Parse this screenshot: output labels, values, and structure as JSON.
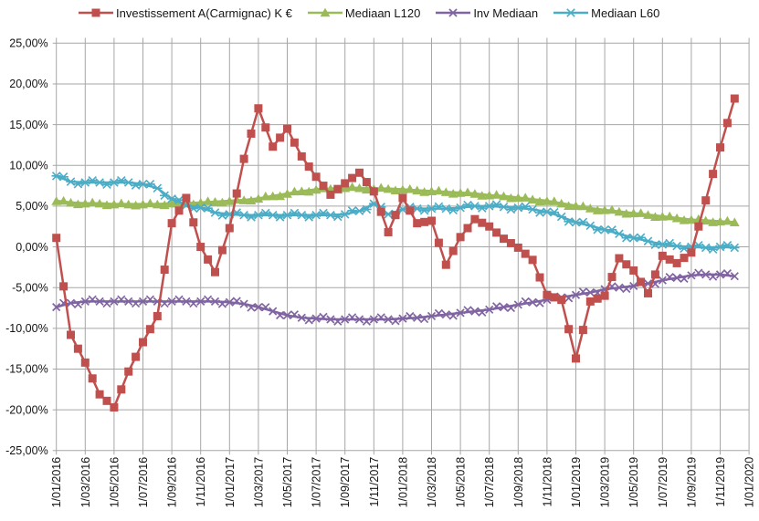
{
  "chart_data": {
    "type": "line",
    "title": "",
    "grid": true,
    "legend_position": "top",
    "ylim": [
      -25,
      25
    ],
    "ytick_step": 5,
    "y_tick_labels": [
      "25,00%",
      "20,00%",
      "15,00%",
      "10,00%",
      "5,00%",
      "0,00%",
      "-5,00%",
      "-10,00%",
      "-15,00%",
      "-20,00%",
      "-25,00%"
    ],
    "x_tick_labels": [
      "1/01/2016",
      "1/03/2016",
      "1/05/2016",
      "1/07/2016",
      "1/09/2016",
      "1/11/2016",
      "1/01/2017",
      "1/03/2017",
      "1/05/2017",
      "1/07/2017",
      "1/09/2017",
      "1/11/2017",
      "1/01/2018",
      "1/03/2018",
      "1/05/2018",
      "1/07/2018",
      "1/09/2018",
      "1/11/2018",
      "1/01/2019",
      "1/03/2019",
      "1/05/2019",
      "1/07/2019",
      "1/09/2019",
      "1/11/2019",
      "1/01/2020"
    ],
    "categories": [
      "1/01/2016",
      "1/02/2016",
      "1/03/2016",
      "1/04/2016",
      "1/05/2016",
      "1/06/2016",
      "1/07/2016",
      "1/08/2016",
      "1/09/2016",
      "1/10/2016",
      "1/11/2016",
      "1/12/2016",
      "1/01/2017",
      "1/02/2017",
      "1/03/2017",
      "1/04/2017",
      "1/05/2017",
      "1/06/2017",
      "1/07/2017",
      "1/08/2017",
      "1/09/2017",
      "1/10/2017",
      "1/11/2017",
      "1/12/2017",
      "1/01/2018",
      "1/02/2018",
      "1/03/2018",
      "1/04/2018",
      "1/05/2018",
      "1/06/2018",
      "1/07/2018",
      "1/08/2018",
      "1/09/2018",
      "1/10/2018",
      "1/11/2018",
      "1/12/2018",
      "1/01/2019",
      "1/02/2019",
      "1/03/2019",
      "1/04/2019",
      "1/05/2019",
      "1/06/2019",
      "1/07/2019",
      "1/08/2019",
      "1/09/2019",
      "1/10/2019",
      "1/11/2019",
      "1/12/2019"
    ],
    "value_unit": "percent",
    "colors": {
      "grid": "#a6a6a6",
      "axis_text": "#141414",
      "background": "#ffffff"
    },
    "series": [
      {
        "key": "investissement-a-carmignac",
        "name": "Investissement A(Carmignac) K €",
        "color": "#C0504D",
        "marker": "square",
        "values": [
          1.1,
          -10.8,
          -14.2,
          -18.1,
          -19.7,
          -15.3,
          -11.7,
          -8.5,
          2.9,
          6.0,
          0.0,
          -3.1,
          2.3,
          10.8,
          17.0,
          12.3,
          14.5,
          11.1,
          8.6,
          6.4,
          7.8,
          9.1,
          6.8,
          1.8,
          6.0,
          2.9,
          3.2,
          -2.2,
          1.2,
          3.4,
          2.5,
          1.0,
          -0.1,
          -1.6,
          -5.9,
          -6.5,
          -13.7,
          -6.7,
          -6.0,
          -1.4,
          -2.9,
          -5.7,
          -1.1,
          -2.0,
          -0.7,
          5.7,
          12.2,
          18.2
        ]
      },
      {
        "key": "mediaan-l120",
        "name": "Mediaan L120",
        "color": "#9BBB59",
        "marker": "triangle",
        "values": [
          5.6,
          5.4,
          5.3,
          5.3,
          5.2,
          5.2,
          5.2,
          5.2,
          5.3,
          5.3,
          5.4,
          5.5,
          5.6,
          5.7,
          5.9,
          6.2,
          6.5,
          6.8,
          7.0,
          7.1,
          7.2,
          7.2,
          7.1,
          7.1,
          7.0,
          6.9,
          6.8,
          6.7,
          6.6,
          6.5,
          6.3,
          6.2,
          6.0,
          5.8,
          5.6,
          5.3,
          5.0,
          4.7,
          4.5,
          4.3,
          4.1,
          3.9,
          3.7,
          3.5,
          3.3,
          3.2,
          3.1,
          3.0
        ]
      },
      {
        "key": "inv-mediaan",
        "name": "Inv Mediaan",
        "color": "#8064A2",
        "marker": "x",
        "values": [
          -7.4,
          -6.9,
          -6.7,
          -6.7,
          -6.7,
          -6.7,
          -6.7,
          -6.7,
          -6.7,
          -6.7,
          -6.7,
          -6.7,
          -6.8,
          -7.0,
          -7.4,
          -7.9,
          -8.4,
          -8.7,
          -8.8,
          -8.9,
          -8.9,
          -8.9,
          -8.9,
          -8.9,
          -8.8,
          -8.7,
          -8.5,
          -8.3,
          -8.1,
          -7.9,
          -7.7,
          -7.4,
          -7.1,
          -6.8,
          -6.5,
          -6.2,
          -5.9,
          -5.6,
          -5.2,
          -5.0,
          -4.8,
          -4.5,
          -4.1,
          -3.8,
          -3.5,
          -3.4,
          -3.4,
          -3.6
        ]
      },
      {
        "key": "mediaan-l60",
        "name": "Mediaan L60",
        "color": "#4BACC6",
        "marker": "star",
        "values": [
          8.7,
          8.0,
          7.9,
          7.9,
          7.9,
          7.9,
          7.7,
          7.2,
          5.9,
          5.1,
          4.8,
          4.2,
          4.0,
          3.9,
          3.9,
          3.9,
          3.9,
          3.9,
          3.9,
          3.9,
          4.0,
          4.4,
          5.3,
          4.0,
          4.6,
          4.7,
          4.7,
          4.7,
          4.8,
          5.0,
          5.0,
          4.9,
          4.8,
          4.6,
          4.3,
          3.7,
          3.0,
          2.6,
          2.1,
          1.6,
          1.1,
          0.7,
          0.3,
          0.1,
          0.0,
          -0.1,
          0.0,
          -0.1
        ]
      }
    ]
  }
}
